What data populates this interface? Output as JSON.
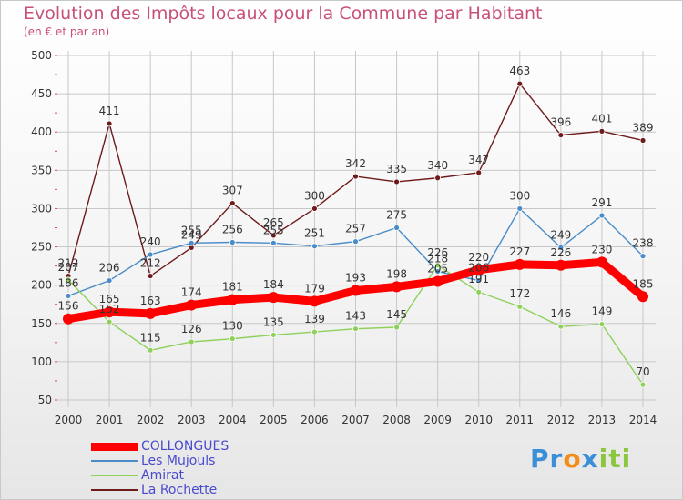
{
  "header": {
    "title": "Evolution des Impôts locaux pour la Commune par Habitant",
    "subtitle": "(en € et par an)"
  },
  "brand": {
    "parts": [
      "Pr",
      "o",
      "x",
      "i",
      "t",
      "i"
    ],
    "colors": [
      "#3a8fd8",
      "#f28c1a",
      "#3a8fd8",
      "#8cc63f",
      "#8cc63f",
      "#8cc63f"
    ]
  },
  "chart_data": {
    "type": "line",
    "title": "Evolution des Impôts locaux pour la Commune par Habitant",
    "subtitle": "(en € et par an)",
    "xlabel": "",
    "ylabel": "",
    "ylim": [
      50,
      500
    ],
    "yticks": [
      50,
      100,
      150,
      200,
      250,
      300,
      350,
      400,
      450,
      500
    ],
    "grid": true,
    "legend_position": "bottom-left",
    "x": [
      "2000",
      "2001",
      "2002",
      "2003",
      "2004",
      "2005",
      "2006",
      "2007",
      "2008",
      "2009",
      "2010",
      "2011",
      "2012",
      "2013",
      "2014"
    ],
    "series": [
      {
        "name": "La Rochette",
        "color": "#6e1a1a",
        "values": [
          212,
          411,
          212,
          249,
          307,
          265,
          300,
          342,
          335,
          340,
          347,
          463,
          396,
          401,
          389
        ],
        "labels": [
          "212",
          "411",
          "212",
          "249",
          "307",
          "265",
          "300",
          "342",
          "335",
          "340",
          "347",
          "463",
          "396",
          "401",
          "389"
        ]
      },
      {
        "name": "Les Mujouls",
        "color": "#4a8cc8",
        "values": [
          186,
          206,
          240,
          255,
          256,
          255,
          251,
          257,
          275,
          218,
          206,
          300,
          249,
          291,
          238
        ],
        "labels": [
          "186",
          "206",
          "240",
          "255",
          "256",
          "255",
          "251",
          "257",
          "275",
          "218",
          "206",
          "300",
          "249",
          "291",
          "238"
        ]
      },
      {
        "name": "Amirat",
        "color": "#8ed05a",
        "values": [
          207,
          152,
          115,
          126,
          130,
          135,
          139,
          143,
          145,
          226,
          191,
          172,
          146,
          149,
          70
        ],
        "labels": [
          "207",
          "152",
          "115",
          "126",
          "130",
          "135",
          "139",
          "143",
          "145",
          "226",
          "191",
          "172",
          "146",
          "149",
          "70"
        ]
      },
      {
        "name": "COLLONGUES",
        "color": "#ff0000",
        "values": [
          156,
          165,
          163,
          174,
          181,
          184,
          179,
          193,
          198,
          205,
          220,
          227,
          226,
          230,
          185
        ],
        "labels": [
          "156",
          "165",
          "163",
          "174",
          "181",
          "184",
          "179",
          "193",
          "198",
          "205",
          "220",
          "227",
          "226",
          "230",
          "185"
        ]
      }
    ]
  },
  "legend": {
    "items": [
      {
        "label": "COLLONGUES",
        "color": "#ff0000"
      },
      {
        "label": "Les Mujouls",
        "color": "#4a8cc8"
      },
      {
        "label": "Amirat",
        "color": "#8ed05a"
      },
      {
        "label": "La Rochette",
        "color": "#6e1a1a"
      }
    ]
  }
}
